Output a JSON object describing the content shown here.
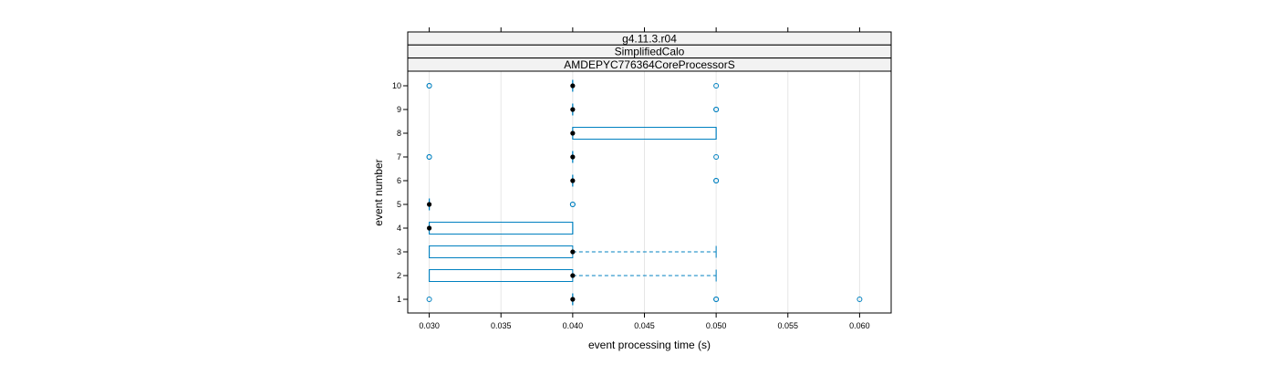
{
  "chart_data": {
    "type": "box",
    "orientation": "horizontal",
    "strips": [
      "g4.11.3.r04",
      "SimplifiedCalo",
      "AMDEPYC776364CoreProcessorS"
    ],
    "xlabel": "event processing time (s)",
    "ylabel": "event number",
    "xlim": [
      0.0285,
      0.0622
    ],
    "x_ticks": [
      0.03,
      0.035,
      0.04,
      0.045,
      0.05,
      0.055,
      0.06
    ],
    "x_tick_labels": [
      "0.030",
      "0.035",
      "0.040",
      "0.045",
      "0.050",
      "0.055",
      "0.060"
    ],
    "categories": [
      "1",
      "2",
      "3",
      "4",
      "5",
      "6",
      "7",
      "8",
      "9",
      "10"
    ],
    "grid": "vertical",
    "colors": {
      "box": "#0080c0",
      "median": "#000000",
      "strip_bg": "#f2f2f2",
      "grid": "#e6e6e6"
    },
    "boxes": [
      {
        "event": "1",
        "q1": 0.04,
        "median": 0.04,
        "q3": 0.04,
        "whisker_low": 0.04,
        "whisker_high": 0.04,
        "outliers": [
          0.03,
          0.05,
          0.05,
          0.06
        ]
      },
      {
        "event": "2",
        "q1": 0.03,
        "median": 0.04,
        "q3": 0.04,
        "whisker_low": 0.03,
        "whisker_high": 0.05,
        "outliers": []
      },
      {
        "event": "3",
        "q1": 0.03,
        "median": 0.04,
        "q3": 0.04,
        "whisker_low": 0.03,
        "whisker_high": 0.05,
        "outliers": []
      },
      {
        "event": "4",
        "q1": 0.03,
        "median": 0.03,
        "q3": 0.04,
        "whisker_low": 0.03,
        "whisker_high": 0.04,
        "outliers": []
      },
      {
        "event": "5",
        "q1": 0.03,
        "median": 0.03,
        "q3": 0.03,
        "whisker_low": 0.03,
        "whisker_high": 0.03,
        "outliers": [
          0.04,
          0.04
        ]
      },
      {
        "event": "6",
        "q1": 0.04,
        "median": 0.04,
        "q3": 0.04,
        "whisker_low": 0.04,
        "whisker_high": 0.04,
        "outliers": [
          0.05,
          0.05
        ]
      },
      {
        "event": "7",
        "q1": 0.04,
        "median": 0.04,
        "q3": 0.04,
        "whisker_low": 0.04,
        "whisker_high": 0.04,
        "outliers": [
          0.03,
          0.03,
          0.05
        ]
      },
      {
        "event": "8",
        "q1": 0.04,
        "median": 0.04,
        "q3": 0.05,
        "whisker_low": 0.04,
        "whisker_high": 0.05,
        "outliers": []
      },
      {
        "event": "9",
        "q1": 0.04,
        "median": 0.04,
        "q3": 0.04,
        "whisker_low": 0.04,
        "whisker_high": 0.04,
        "outliers": [
          0.05,
          0.05
        ]
      },
      {
        "event": "10",
        "q1": 0.04,
        "median": 0.04,
        "q3": 0.04,
        "whisker_low": 0.04,
        "whisker_high": 0.04,
        "outliers": [
          0.03,
          0.03,
          0.05
        ]
      }
    ]
  }
}
